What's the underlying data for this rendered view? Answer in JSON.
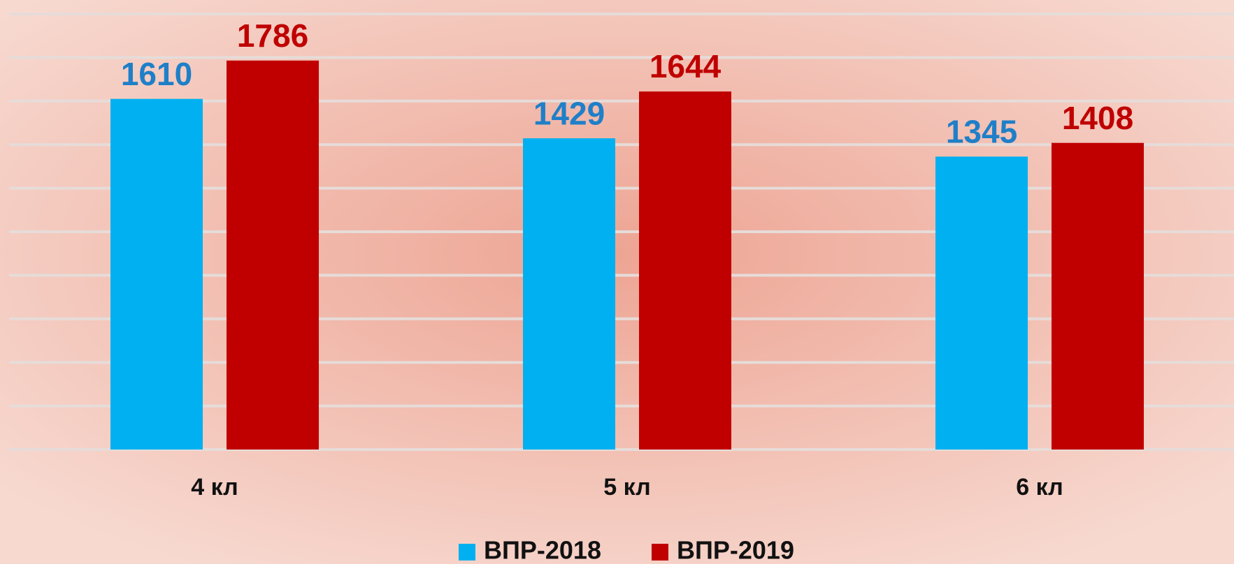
{
  "chart_data": {
    "type": "bar",
    "categories": [
      "4 кл",
      "5 кл",
      "6 кл"
    ],
    "series": [
      {
        "name": "ВПР-2018",
        "color": "#00b0f0",
        "values": [
          1610,
          1429,
          1345
        ]
      },
      {
        "name": "ВПР-2019",
        "color": "#c00000",
        "values": [
          1786,
          1644,
          1408
        ]
      }
    ],
    "ylim": [
      0,
      2000
    ],
    "yticks": [
      0,
      200,
      400,
      600,
      800,
      1000,
      1200,
      1400,
      1600,
      1800,
      2000
    ],
    "grid": true,
    "legend": "bottom"
  }
}
